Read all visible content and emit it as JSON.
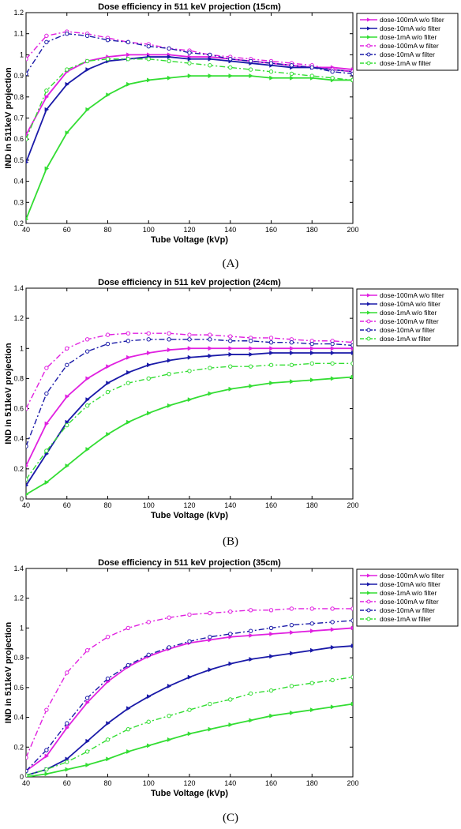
{
  "captions": [
    "(A)",
    "(B)",
    "(C)"
  ],
  "chart_data": [
    {
      "type": "line",
      "title": "Dose efficiency in 511 keV projection (15cm)",
      "xlabel": "Tube Voltage (kVp)",
      "ylabel": "IND in 511keV projection",
      "xlim": [
        40,
        200
      ],
      "ylim": [
        0.2,
        1.2
      ],
      "xticks": [
        40,
        60,
        80,
        100,
        120,
        140,
        160,
        180,
        200
      ],
      "yticks": [
        0.2,
        0.3,
        0.4,
        0.5,
        0.6,
        0.7,
        0.8,
        0.9,
        1,
        1.1,
        1.2
      ],
      "ytick_labels": [
        "0.2",
        "0.3",
        "0.4",
        "0.5",
        "0.6",
        "0.7",
        "0.8",
        "0.9",
        "1",
        "1.1",
        "1.2"
      ],
      "legend_position": "top-right",
      "grid": false,
      "x": [
        40,
        50,
        60,
        70,
        80,
        90,
        100,
        110,
        120,
        130,
        140,
        150,
        160,
        170,
        180,
        190,
        200
      ],
      "series": [
        {
          "name": "dose-100mA w/o filter",
          "color": "#e020e0",
          "style": "solid",
          "marker": "right-triangle",
          "values": [
            0.62,
            0.8,
            0.92,
            0.97,
            0.99,
            1.0,
            1.0,
            1.0,
            0.99,
            0.99,
            0.98,
            0.97,
            0.96,
            0.95,
            0.94,
            0.94,
            0.93
          ]
        },
        {
          "name": "dose-10mA w/o filter",
          "color": "#1a1aa8",
          "style": "solid",
          "marker": "right-triangle",
          "values": [
            0.49,
            0.74,
            0.86,
            0.93,
            0.97,
            0.98,
            0.99,
            0.99,
            0.98,
            0.98,
            0.97,
            0.96,
            0.95,
            0.94,
            0.94,
            0.93,
            0.92
          ]
        },
        {
          "name": "dose-1mA w/o filter",
          "color": "#33dd33",
          "style": "solid",
          "marker": "right-triangle",
          "values": [
            0.22,
            0.46,
            0.63,
            0.74,
            0.81,
            0.86,
            0.88,
            0.89,
            0.9,
            0.9,
            0.9,
            0.9,
            0.89,
            0.89,
            0.89,
            0.88,
            0.88
          ]
        },
        {
          "name": "dose-100mA w filter",
          "color": "#e020e0",
          "style": "dashdot",
          "marker": "circle",
          "values": [
            0.98,
            1.09,
            1.11,
            1.1,
            1.08,
            1.06,
            1.05,
            1.03,
            1.02,
            1.0,
            0.99,
            0.98,
            0.97,
            0.96,
            0.95,
            0.93,
            0.92
          ]
        },
        {
          "name": "dose-10mA w filter",
          "color": "#1a1aa8",
          "style": "dashdot",
          "marker": "circle",
          "values": [
            0.91,
            1.06,
            1.1,
            1.09,
            1.07,
            1.06,
            1.04,
            1.03,
            1.01,
            1.0,
            0.98,
            0.97,
            0.96,
            0.95,
            0.94,
            0.92,
            0.91
          ]
        },
        {
          "name": "dose-1mA w filter",
          "color": "#33dd33",
          "style": "dashdot",
          "marker": "circle",
          "values": [
            0.6,
            0.83,
            0.93,
            0.97,
            0.98,
            0.98,
            0.98,
            0.97,
            0.96,
            0.95,
            0.94,
            0.93,
            0.92,
            0.91,
            0.9,
            0.89,
            0.88
          ]
        }
      ]
    },
    {
      "type": "line",
      "title": "Dose efficiency in 511 keV projection (24cm)",
      "xlabel": "Tube Voltage (kVp)",
      "ylabel": "IND in 511keV projection",
      "xlim": [
        40,
        200
      ],
      "ylim": [
        0,
        1.4
      ],
      "xticks": [
        40,
        60,
        80,
        100,
        120,
        140,
        160,
        180,
        200
      ],
      "yticks": [
        0,
        0.2,
        0.4,
        0.6,
        0.8,
        1,
        1.2,
        1.4
      ],
      "ytick_labels": [
        "0",
        "0.2",
        "0.4",
        "0.6",
        "0.8",
        "1",
        "1.2",
        "1.4"
      ],
      "legend_position": "top-right",
      "grid": false,
      "x": [
        40,
        50,
        60,
        70,
        80,
        90,
        100,
        110,
        120,
        130,
        140,
        150,
        160,
        170,
        180,
        190,
        200
      ],
      "series": [
        {
          "name": "dose-100mA w/o filter",
          "color": "#e020e0",
          "style": "solid",
          "marker": "right-triangle",
          "values": [
            0.22,
            0.5,
            0.68,
            0.8,
            0.88,
            0.94,
            0.97,
            0.99,
            1.0,
            1.0,
            1.0,
            1.0,
            1.0,
            1.0,
            1.0,
            1.0,
            1.0
          ]
        },
        {
          "name": "dose-10mA w/o filter",
          "color": "#1a1aa8",
          "style": "solid",
          "marker": "right-triangle",
          "values": [
            0.09,
            0.3,
            0.51,
            0.66,
            0.77,
            0.84,
            0.89,
            0.92,
            0.94,
            0.95,
            0.96,
            0.96,
            0.97,
            0.97,
            0.97,
            0.97,
            0.97
          ]
        },
        {
          "name": "dose-1mA w/o filter",
          "color": "#33dd33",
          "style": "solid",
          "marker": "right-triangle",
          "values": [
            0.03,
            0.11,
            0.22,
            0.33,
            0.43,
            0.51,
            0.57,
            0.62,
            0.66,
            0.7,
            0.73,
            0.75,
            0.77,
            0.78,
            0.79,
            0.8,
            0.81
          ]
        },
        {
          "name": "dose-100mA w filter",
          "color": "#e020e0",
          "style": "dashdot",
          "marker": "circle",
          "values": [
            0.6,
            0.87,
            1.0,
            1.06,
            1.09,
            1.1,
            1.1,
            1.1,
            1.09,
            1.09,
            1.08,
            1.07,
            1.07,
            1.06,
            1.05,
            1.05,
            1.04
          ]
        },
        {
          "name": "dose-10mA w filter",
          "color": "#1a1aa8",
          "style": "dashdot",
          "marker": "circle",
          "values": [
            0.35,
            0.7,
            0.89,
            0.98,
            1.03,
            1.05,
            1.06,
            1.06,
            1.06,
            1.06,
            1.05,
            1.05,
            1.04,
            1.04,
            1.03,
            1.03,
            1.02
          ]
        },
        {
          "name": "dose-1mA w filter",
          "color": "#33dd33",
          "style": "dashdot",
          "marker": "circle",
          "values": [
            0.13,
            0.32,
            0.49,
            0.62,
            0.71,
            0.77,
            0.8,
            0.83,
            0.85,
            0.87,
            0.88,
            0.88,
            0.89,
            0.89,
            0.9,
            0.9,
            0.9
          ]
        }
      ]
    },
    {
      "type": "line",
      "title": "Dose efficiency in 511 keV projection (35cm)",
      "xlabel": "Tube Voltage (kVp)",
      "ylabel": "IND in 511keV projection",
      "xlim": [
        40,
        200
      ],
      "ylim": [
        0,
        1.4
      ],
      "xticks": [
        40,
        60,
        80,
        100,
        120,
        140,
        160,
        180,
        200
      ],
      "yticks": [
        0,
        0.2,
        0.4,
        0.6,
        0.8,
        1,
        1.2,
        1.4
      ],
      "ytick_labels": [
        "0",
        "0.2",
        "0.4",
        "0.6",
        "0.8",
        "1",
        "1.2",
        "1.4"
      ],
      "legend_position": "top-right",
      "grid": false,
      "x": [
        40,
        50,
        60,
        70,
        80,
        90,
        100,
        110,
        120,
        130,
        140,
        150,
        160,
        170,
        180,
        190,
        200
      ],
      "series": [
        {
          "name": "dose-100mA w/o filter",
          "color": "#e020e0",
          "style": "solid",
          "marker": "right-triangle",
          "values": [
            0.04,
            0.14,
            0.33,
            0.5,
            0.64,
            0.74,
            0.81,
            0.86,
            0.9,
            0.92,
            0.94,
            0.95,
            0.96,
            0.97,
            0.98,
            0.99,
            1.0
          ]
        },
        {
          "name": "dose-10mA w/o filter",
          "color": "#1a1aa8",
          "style": "solid",
          "marker": "right-triangle",
          "values": [
            0.01,
            0.05,
            0.12,
            0.24,
            0.36,
            0.46,
            0.54,
            0.61,
            0.67,
            0.72,
            0.76,
            0.79,
            0.81,
            0.83,
            0.85,
            0.87,
            0.88
          ]
        },
        {
          "name": "dose-1mA w/o filter",
          "color": "#33dd33",
          "style": "solid",
          "marker": "right-triangle",
          "values": [
            0.0,
            0.02,
            0.05,
            0.08,
            0.12,
            0.17,
            0.21,
            0.25,
            0.29,
            0.32,
            0.35,
            0.38,
            0.41,
            0.43,
            0.45,
            0.47,
            0.49
          ]
        },
        {
          "name": "dose-100mA w filter",
          "color": "#e020e0",
          "style": "dashdot",
          "marker": "circle",
          "values": [
            0.13,
            0.45,
            0.7,
            0.85,
            0.94,
            1.0,
            1.04,
            1.07,
            1.09,
            1.1,
            1.11,
            1.12,
            1.12,
            1.13,
            1.13,
            1.13,
            1.13
          ]
        },
        {
          "name": "dose-10mA w filter",
          "color": "#1a1aa8",
          "style": "dashdot",
          "marker": "circle",
          "values": [
            0.04,
            0.18,
            0.36,
            0.53,
            0.66,
            0.75,
            0.82,
            0.87,
            0.91,
            0.94,
            0.96,
            0.98,
            1.0,
            1.02,
            1.03,
            1.04,
            1.05
          ]
        },
        {
          "name": "dose-1mA w filter",
          "color": "#33dd33",
          "style": "dashdot",
          "marker": "circle",
          "values": [
            0.01,
            0.05,
            0.1,
            0.17,
            0.25,
            0.32,
            0.37,
            0.41,
            0.45,
            0.49,
            0.52,
            0.56,
            0.58,
            0.61,
            0.63,
            0.65,
            0.67
          ]
        }
      ]
    }
  ]
}
